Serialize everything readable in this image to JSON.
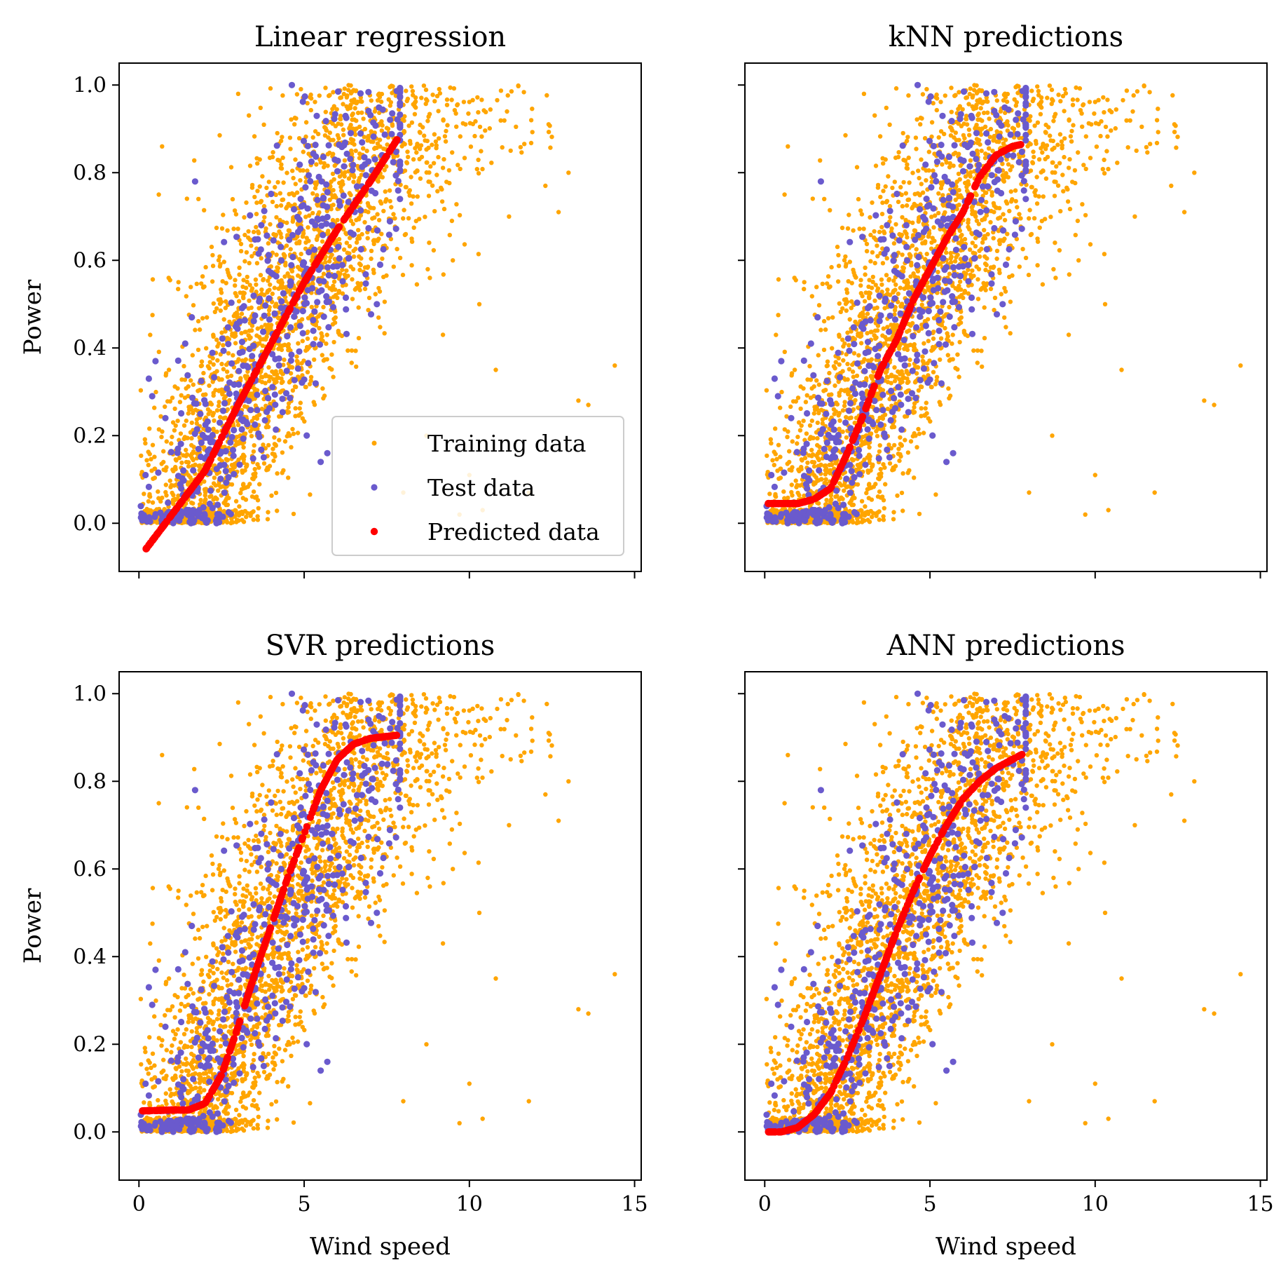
{
  "figure": {
    "title": "",
    "colors": {
      "training": "#FFA500",
      "test": "#6A5ACD",
      "predicted": "#FF0000",
      "frame": "#000000",
      "background": "#FFFFFF"
    }
  },
  "legend": {
    "placement": "lower-right of first panel",
    "entries": [
      "Training data",
      "Test data",
      "Predicted data"
    ]
  },
  "chart_data": [
    {
      "type": "scatter",
      "title": "Linear regression",
      "xlabel": "",
      "ylabel": "Power",
      "xlim": [
        -0.6,
        15.2
      ],
      "ylim": [
        -0.11,
        1.05
      ],
      "xticks": [
        0,
        5,
        10,
        15
      ],
      "yticks": [
        0.0,
        0.2,
        0.4,
        0.6,
        0.8,
        1.0
      ],
      "show_xticklabels": false,
      "show_yticklabels": true,
      "grid": false,
      "legend": true,
      "model": "linear",
      "predicted_curve": [
        [
          0.2,
          -0.06
        ],
        [
          1,
          0.02
        ],
        [
          2,
          0.12
        ],
        [
          3,
          0.27
        ],
        [
          4,
          0.41
        ],
        [
          5,
          0.55
        ],
        [
          6,
          0.67
        ],
        [
          7,
          0.78
        ],
        [
          7.85,
          0.88
        ]
      ]
    },
    {
      "type": "scatter",
      "title": "kNN predictions",
      "xlabel": "",
      "ylabel": "",
      "xlim": [
        -0.6,
        15.2
      ],
      "ylim": [
        -0.11,
        1.05
      ],
      "xticks": [
        0,
        5,
        10,
        15
      ],
      "yticks": [
        0.0,
        0.2,
        0.4,
        0.6,
        0.8,
        1.0
      ],
      "show_xticklabels": false,
      "show_yticklabels": false,
      "grid": false,
      "legend": false,
      "model": "knn",
      "predicted_curve": [
        [
          0.1,
          0.045
        ],
        [
          0.5,
          0.045
        ],
        [
          1,
          0.045
        ],
        [
          1.5,
          0.055
        ],
        [
          2,
          0.08
        ],
        [
          2.5,
          0.16
        ],
        [
          3,
          0.25
        ],
        [
          3.5,
          0.35
        ],
        [
          4,
          0.42
        ],
        [
          4.5,
          0.51
        ],
        [
          5,
          0.58
        ],
        [
          5.5,
          0.65
        ],
        [
          6,
          0.71
        ],
        [
          6.5,
          0.79
        ],
        [
          7,
          0.84
        ],
        [
          7.5,
          0.86
        ],
        [
          7.8,
          0.865
        ]
      ]
    },
    {
      "type": "scatter",
      "title": "SVR predictions",
      "xlabel": "Wind speed",
      "ylabel": "Power",
      "xlim": [
        -0.6,
        15.2
      ],
      "ylim": [
        -0.11,
        1.05
      ],
      "xticks": [
        0,
        5,
        10,
        15
      ],
      "yticks": [
        0.0,
        0.2,
        0.4,
        0.6,
        0.8,
        1.0
      ],
      "show_xticklabels": true,
      "show_yticklabels": true,
      "grid": false,
      "legend": false,
      "model": "svr",
      "predicted_curve": [
        [
          0.1,
          0.048
        ],
        [
          1,
          0.05
        ],
        [
          1.5,
          0.05
        ],
        [
          2,
          0.065
        ],
        [
          2.5,
          0.13
        ],
        [
          3,
          0.24
        ],
        [
          3.5,
          0.36
        ],
        [
          4,
          0.47
        ],
        [
          4.5,
          0.58
        ],
        [
          5,
          0.68
        ],
        [
          5.5,
          0.78
        ],
        [
          6,
          0.85
        ],
        [
          6.5,
          0.885
        ],
        [
          7,
          0.898
        ],
        [
          7.8,
          0.905
        ]
      ]
    },
    {
      "type": "scatter",
      "title": "ANN predictions",
      "xlabel": "Wind speed",
      "ylabel": "",
      "xlim": [
        -0.6,
        15.2
      ],
      "ylim": [
        -0.11,
        1.05
      ],
      "xticks": [
        0,
        5,
        10,
        15
      ],
      "yticks": [
        0.0,
        0.2,
        0.4,
        0.6,
        0.8,
        1.0
      ],
      "show_xticklabels": true,
      "show_yticklabels": false,
      "grid": false,
      "legend": false,
      "model": "ann",
      "predicted_curve": [
        [
          0.1,
          0.0
        ],
        [
          0.5,
          0.0
        ],
        [
          1,
          0.01
        ],
        [
          1.5,
          0.04
        ],
        [
          2,
          0.09
        ],
        [
          2.5,
          0.17
        ],
        [
          3,
          0.26
        ],
        [
          3.5,
          0.36
        ],
        [
          4,
          0.46
        ],
        [
          4.5,
          0.55
        ],
        [
          5,
          0.63
        ],
        [
          5.5,
          0.7
        ],
        [
          6,
          0.76
        ],
        [
          6.5,
          0.8
        ],
        [
          7,
          0.83
        ],
        [
          7.5,
          0.85
        ],
        [
          7.8,
          0.862
        ]
      ]
    }
  ],
  "shared_scatter": {
    "description_of_distribution": "same training and test data shown in all four panels",
    "training_outliers": [
      [
        14.4,
        0.36
      ],
      [
        13.3,
        0.28
      ],
      [
        13.6,
        0.27
      ],
      [
        10.8,
        0.35
      ],
      [
        10.0,
        0.11
      ],
      [
        9.2,
        0.43
      ],
      [
        10.3,
        0.5
      ],
      [
        11.8,
        0.07
      ],
      [
        8.7,
        0.2
      ],
      [
        9.7,
        0.02
      ],
      [
        10.4,
        0.03
      ],
      [
        8.0,
        0.07
      ],
      [
        13.0,
        0.8
      ],
      [
        12.3,
        0.77
      ],
      [
        12.7,
        0.71
      ],
      [
        11.2,
        0.7
      ],
      [
        9.5,
        0.6
      ],
      [
        0.7,
        0.86
      ],
      [
        0.6,
        0.75
      ],
      [
        1.8,
        0.74
      ],
      [
        0.9,
        0.56
      ]
    ],
    "test_outliers": [
      [
        1.7,
        0.78
      ],
      [
        0.5,
        0.37
      ],
      [
        0.3,
        0.33
      ],
      [
        0.4,
        0.29
      ],
      [
        0.2,
        0.11
      ],
      [
        0.8,
        0.24
      ],
      [
        1.6,
        0.47
      ],
      [
        1.4,
        0.41
      ],
      [
        7.2,
        0.5
      ],
      [
        7.3,
        0.59
      ],
      [
        5.7,
        0.16
      ],
      [
        5.5,
        0.14
      ]
    ]
  }
}
